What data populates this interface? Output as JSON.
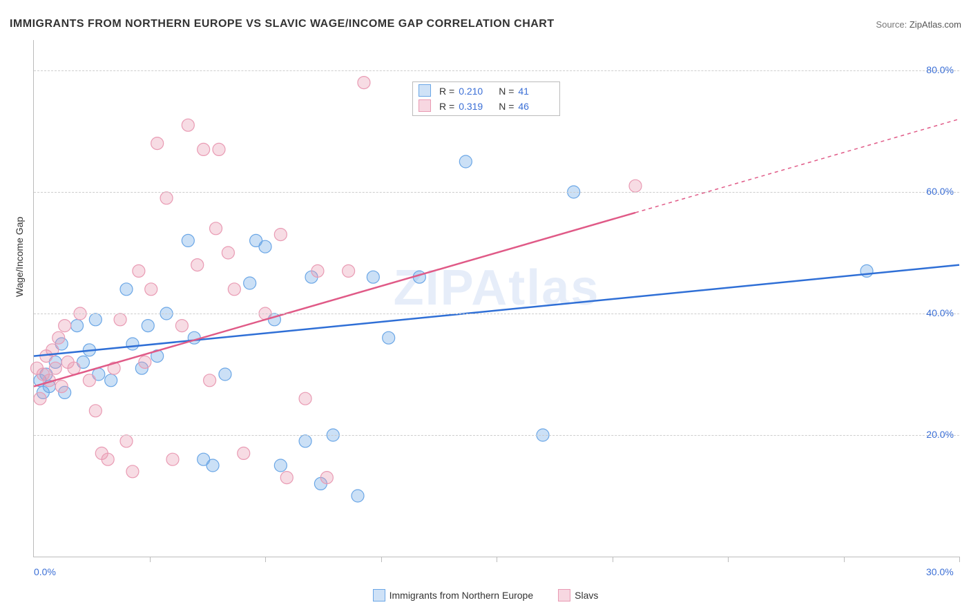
{
  "title": "IMMIGRANTS FROM NORTHERN EUROPE VS SLAVIC WAGE/INCOME GAP CORRELATION CHART",
  "source_label": "Source:",
  "source_value": "ZipAtlas.com",
  "watermark": "ZIPAtlas",
  "ylabel": "Wage/Income Gap",
  "chart": {
    "type": "scatter",
    "xlim": [
      0,
      30
    ],
    "ylim": [
      0,
      85
    ],
    "x_ticks_minor": [
      3.75,
      7.5,
      11.25,
      15,
      18.75,
      22.5,
      26.25,
      30
    ],
    "x_tick_labels": [
      {
        "x": 0,
        "label": "0.0%"
      },
      {
        "x": 30,
        "label": "30.0%"
      }
    ],
    "y_gridlines": [
      20,
      40,
      60,
      80
    ],
    "y_tick_labels": [
      {
        "y": 20,
        "label": "20.0%"
      },
      {
        "y": 40,
        "label": "40.0%"
      },
      {
        "y": 60,
        "label": "60.0%"
      },
      {
        "y": 80,
        "label": "80.0%"
      }
    ],
    "background_color": "#ffffff",
    "grid_color": "#cccccc",
    "axis_color": "#bbbbbb",
    "tick_label_color": "#3b6fd6",
    "marker_radius": 9,
    "marker_fill_opacity": 0.35,
    "marker_stroke_width": 1.2,
    "trend_line_width": 2.5,
    "series": [
      {
        "name": "Immigrants from Northern Europe",
        "color": "#6aa6e6",
        "line_color": "#2f6fd6",
        "R": "0.210",
        "N": "41",
        "trend": {
          "x1": 0,
          "y1": 33,
          "x2": 30,
          "y2": 48,
          "x_solid_end": 30
        },
        "points": [
          [
            0.2,
            29
          ],
          [
            0.3,
            27
          ],
          [
            0.4,
            30
          ],
          [
            0.5,
            28
          ],
          [
            0.7,
            32
          ],
          [
            0.9,
            35
          ],
          [
            1.0,
            27
          ],
          [
            1.4,
            38
          ],
          [
            1.6,
            32
          ],
          [
            1.8,
            34
          ],
          [
            2.0,
            39
          ],
          [
            2.1,
            30
          ],
          [
            2.5,
            29
          ],
          [
            3.0,
            44
          ],
          [
            3.2,
            35
          ],
          [
            3.5,
            31
          ],
          [
            3.7,
            38
          ],
          [
            4.0,
            33
          ],
          [
            4.3,
            40
          ],
          [
            5.0,
            52
          ],
          [
            5.2,
            36
          ],
          [
            5.5,
            16
          ],
          [
            5.8,
            15
          ],
          [
            6.2,
            30
          ],
          [
            7.0,
            45
          ],
          [
            7.2,
            52
          ],
          [
            7.5,
            51
          ],
          [
            7.8,
            39
          ],
          [
            8.0,
            15
          ],
          [
            8.8,
            19
          ],
          [
            9.0,
            46
          ],
          [
            9.3,
            12
          ],
          [
            9.7,
            20
          ],
          [
            10.5,
            10
          ],
          [
            11.0,
            46
          ],
          [
            11.5,
            36
          ],
          [
            12.5,
            46
          ],
          [
            14.0,
            65
          ],
          [
            16.5,
            20
          ],
          [
            17.5,
            60
          ],
          [
            27.0,
            47
          ]
        ]
      },
      {
        "name": "Slavs",
        "color": "#e99ab3",
        "line_color": "#e05a87",
        "R": "0.319",
        "N": "46",
        "trend": {
          "x1": 0,
          "y1": 28,
          "x2": 30,
          "y2": 72,
          "x_solid_end": 19.5
        },
        "points": [
          [
            0.1,
            31
          ],
          [
            0.2,
            26
          ],
          [
            0.3,
            30
          ],
          [
            0.4,
            33
          ],
          [
            0.5,
            29
          ],
          [
            0.6,
            34
          ],
          [
            0.7,
            31
          ],
          [
            0.8,
            36
          ],
          [
            0.9,
            28
          ],
          [
            1.0,
            38
          ],
          [
            1.1,
            32
          ],
          [
            1.3,
            31
          ],
          [
            1.5,
            40
          ],
          [
            1.8,
            29
          ],
          [
            2.0,
            24
          ],
          [
            2.2,
            17
          ],
          [
            2.4,
            16
          ],
          [
            2.6,
            31
          ],
          [
            2.8,
            39
          ],
          [
            3.0,
            19
          ],
          [
            3.2,
            14
          ],
          [
            3.4,
            47
          ],
          [
            3.6,
            32
          ],
          [
            3.8,
            44
          ],
          [
            4.0,
            68
          ],
          [
            4.3,
            59
          ],
          [
            4.5,
            16
          ],
          [
            4.8,
            38
          ],
          [
            5.0,
            71
          ],
          [
            5.3,
            48
          ],
          [
            5.5,
            67
          ],
          [
            5.7,
            29
          ],
          [
            5.9,
            54
          ],
          [
            6.0,
            67
          ],
          [
            6.3,
            50
          ],
          [
            6.5,
            44
          ],
          [
            6.8,
            17
          ],
          [
            7.5,
            40
          ],
          [
            8.0,
            53
          ],
          [
            8.2,
            13
          ],
          [
            8.8,
            26
          ],
          [
            9.2,
            47
          ],
          [
            9.5,
            13
          ],
          [
            10.2,
            47
          ],
          [
            10.7,
            78
          ],
          [
            19.5,
            61
          ]
        ]
      }
    ]
  },
  "legend_bottom": [
    {
      "label": "Immigrants from Northern Europe",
      "fill": "#cfe2f7",
      "stroke": "#6aa6e6"
    },
    {
      "label": "Slavs",
      "fill": "#f7d7e1",
      "stroke": "#e99ab3"
    }
  ]
}
